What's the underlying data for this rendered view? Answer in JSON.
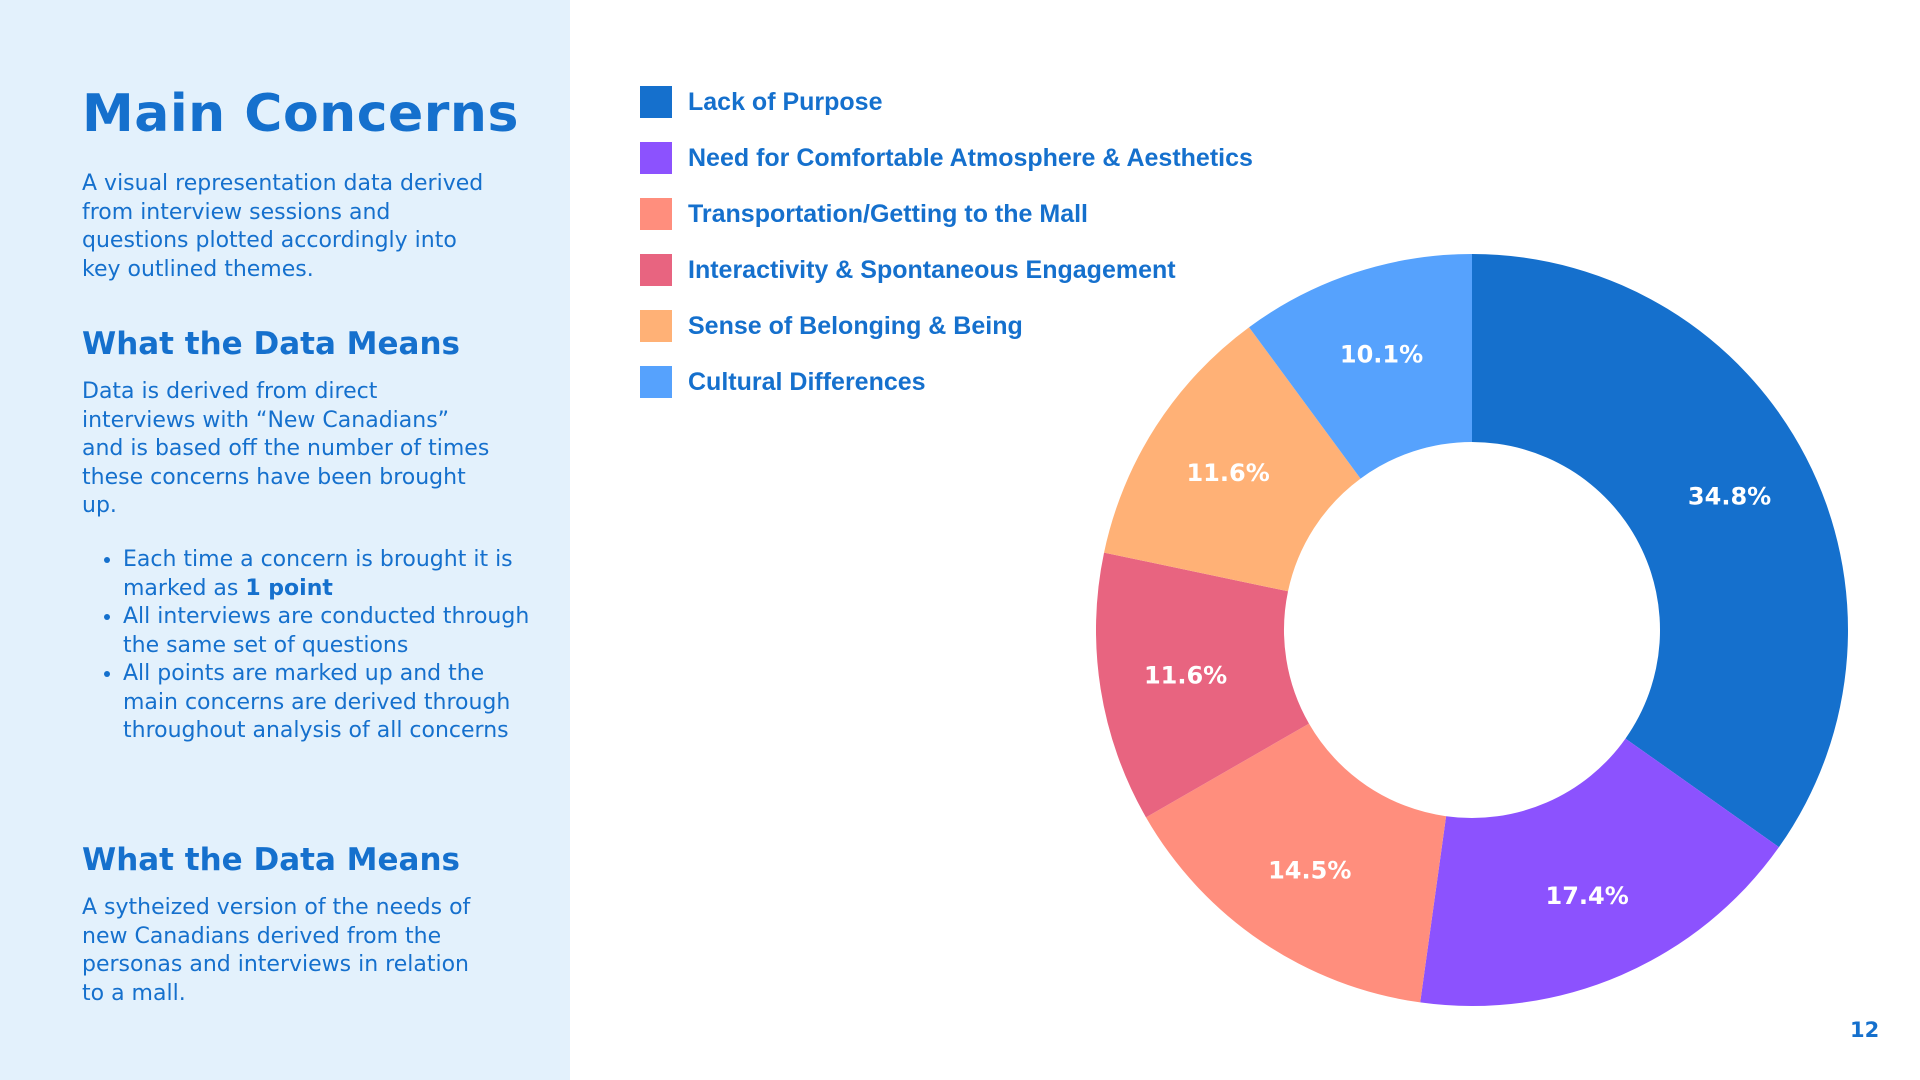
{
  "slide": {
    "title": "Main Concerns",
    "intro": "A visual representation data derived from interview sessions and questions plotted accordingly into key outlined themes.",
    "page_number": "12"
  },
  "section1": {
    "heading": "What the Data Means",
    "body": "Data is derived from direct interviews with “New Canadians” and is based off the number of times these concerns have been brought up.",
    "bullets": {
      "b1_text": "Each time a concern is brought it is marked as ",
      "b1_bold": "1 point",
      "b2": "All interviews are conducted through the same set of questions",
      "b3": "All points are marked up and the main concerns are derived through throughout analysis of all concerns"
    }
  },
  "section2": {
    "heading": "What the Data Means",
    "body": "A sytheized version of the needs of new Canadians derived from the personas and interviews in relation to a mall."
  },
  "chart_data": {
    "type": "pie",
    "subtype": "donut",
    "legend_position": "top-left",
    "slices": [
      {
        "label": "Lack of Purpose",
        "value": 34.8,
        "value_label": "34.8%",
        "color": "#1570cd"
      },
      {
        "label": "Need for Comfortable Atmosphere & Aesthetics",
        "value": 17.4,
        "value_label": "17.4%",
        "color": "#8c52fe"
      },
      {
        "label": "Transportation/Getting to the Mall",
        "value": 14.5,
        "value_label": "14.5%",
        "color": "#ff8e7d"
      },
      {
        "label": "Interactivity & Spontaneous Engagement",
        "value": 11.6,
        "value_label": "11.6%",
        "color": "#e86480"
      },
      {
        "label": "Sense of Belonging & Being",
        "value": 11.6,
        "value_label": "11.6%",
        "color": "#ffb176"
      },
      {
        "label": "Cultural Differences",
        "value": 10.1,
        "value_label": "10.1%",
        "color": "#56a2fd"
      }
    ]
  }
}
